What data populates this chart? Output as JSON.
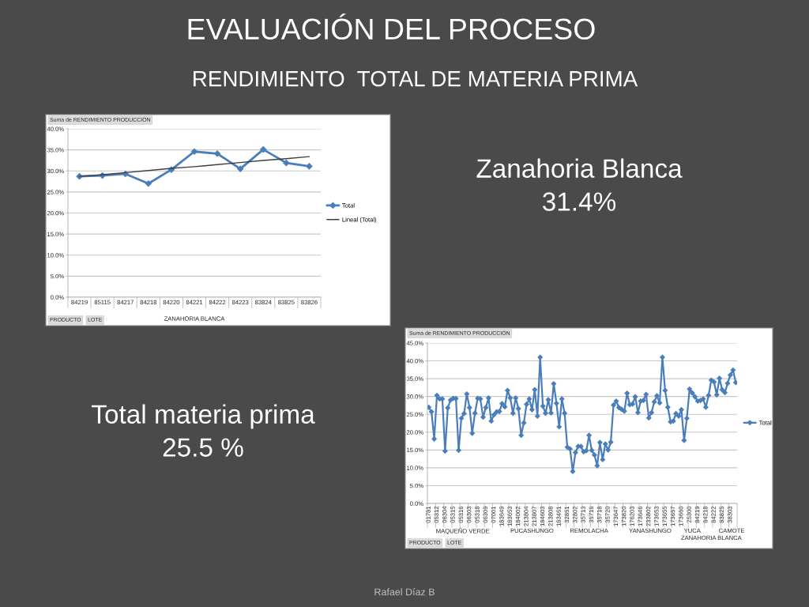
{
  "chart_data": [
    {
      "type": "other",
      "title": "EVALUACIÓN DEL PROCESO",
      "subtitle": "RENDIMIENTO  TOTAL DE MATERIA PRIMA",
      "annotations": [
        "Zanahoria Blanca\n31.4%",
        "Total materia prima\n25.5 %",
        "Rafael Díaz B"
      ]
    },
    {
      "type": "line",
      "categories": [
        "84219",
        "85115",
        "84217",
        "84218",
        "84220",
        "84221",
        "84222",
        "84223",
        "83824",
        "83825",
        "83826"
      ],
      "series": [
        {
          "name": "Total",
          "color": "#4a7ebb",
          "values": [
            28.7,
            28.9,
            29.3,
            27.0,
            30.3,
            34.6,
            34.1,
            30.5,
            35.1,
            31.9,
            31.1
          ]
        },
        {
          "name": "Lineal (Total)",
          "color": "#3f3f3f",
          "marker": "none",
          "values": [
            28.7,
            29.1,
            29.6,
            30.1,
            30.6,
            31.0,
            31.5,
            32.0,
            32.5,
            32.9,
            33.4
          ]
        }
      ],
      "marker": "diamond",
      "xlabel": "ZANAHORIA BLANCA",
      "ylim": [
        0,
        40
      ],
      "yticks": [
        {
          "value": 0,
          "label": "0.0%"
        },
        {
          "value": 5,
          "label": "5.0%"
        },
        {
          "value": 10,
          "label": "10.0%"
        },
        {
          "value": 15,
          "label": "15.0%"
        },
        {
          "value": 20,
          "label": "20.0%"
        },
        {
          "value": 25,
          "label": "25.0%"
        },
        {
          "value": 30,
          "label": "30.0%"
        },
        {
          "value": 35,
          "label": "35.0%"
        },
        {
          "value": 40,
          "label": "40.0%"
        }
      ],
      "grid": "y",
      "legend": "right",
      "annotations": [
        "Suma de RENDIMIENTO PRODUCCIÓN",
        "PRODUCTO",
        "LOTE"
      ]
    },
    {
      "type": "line",
      "categories": [
        "01781",
        null,
        null,
        "05312",
        null,
        null,
        "06304",
        null,
        null,
        "05315",
        null,
        null,
        "05316",
        null,
        null,
        "06303",
        null,
        null,
        "05318",
        null,
        null,
        "06309",
        null,
        null,
        "07001",
        null,
        null,
        "183649",
        null,
        null,
        "183653",
        null,
        null,
        "184002",
        null,
        null,
        "213804",
        null,
        null,
        "213807",
        null,
        null,
        "184603",
        null,
        null,
        "213808",
        null,
        null,
        "183461",
        null,
        null,
        "32851",
        null,
        null,
        "32802",
        null,
        null,
        "35713",
        null,
        null,
        "35716",
        null,
        null,
        "35718",
        null,
        null,
        "35720",
        null,
        null,
        "173647",
        null,
        null,
        "173820",
        null,
        null,
        "176203",
        null,
        null,
        "173646",
        null,
        null,
        "233802",
        null,
        null,
        "173653",
        null,
        null,
        "173655",
        null,
        null,
        "173657",
        null,
        null,
        "173660",
        null,
        null,
        "25300",
        null,
        null,
        "84219",
        null,
        null,
        "84218",
        null,
        null,
        "84222",
        null,
        null,
        "83825",
        null,
        null,
        "38303",
        null,
        null
      ],
      "series": [
        {
          "name": "Total",
          "color": "#4a7ebb",
          "values": [
            27.0,
            25.7,
            18.1,
            30.3,
            29.3,
            29.3,
            14.7,
            26.8,
            29.0,
            29.5,
            29.4,
            14.9,
            23.9,
            25.2,
            30.7,
            26.9,
            19.7,
            25.3,
            29.5,
            29.3,
            24.2,
            26.9,
            29.6,
            23.1,
            24.9,
            25.7,
            25.8,
            28.0,
            27.1,
            31.7,
            29.6,
            25.3,
            29.6,
            26.6,
            19.1,
            22.6,
            27.8,
            29.3,
            26.3,
            31.9,
            24.5,
            41.0,
            27.3,
            25.3,
            29.1,
            25.4,
            33.6,
            28.1,
            21.5,
            29.3,
            25.3,
            15.8,
            15.3,
            9.0,
            14.3,
            16.0,
            16.0,
            14.5,
            14.8,
            19.1,
            14.9,
            13.6,
            10.6,
            17.1,
            12.3,
            16.7,
            15.0,
            17.2,
            27.6,
            28.7,
            26.9,
            26.4,
            25.9,
            30.9,
            27.7,
            27.9,
            29.9,
            25.5,
            28.7,
            28.9,
            30.6,
            24.0,
            25.5,
            28.5,
            30.2,
            28.2,
            41.0,
            31.7,
            27.0,
            22.9,
            23.1,
            25.2,
            24.5,
            26.3,
            17.7,
            23.9,
            32.1,
            31.0,
            29.9,
            28.7,
            28.9,
            29.3,
            27.0,
            30.3,
            34.6,
            34.1,
            30.5,
            35.1,
            31.9,
            31.1,
            33.7,
            36.0,
            37.4,
            33.9
          ]
        }
      ],
      "marker": "diamond",
      "ylim": [
        0,
        45
      ],
      "yticks": [
        {
          "value": 0,
          "label": "0.0%"
        },
        {
          "value": 5,
          "label": "5.0%"
        },
        {
          "value": 10,
          "label": "10.0%"
        },
        {
          "value": 15,
          "label": "15.0%"
        },
        {
          "value": 20,
          "label": "20.0%"
        },
        {
          "value": 25,
          "label": "25.0%"
        },
        {
          "value": 30,
          "label": "30.0%"
        },
        {
          "value": 35,
          "label": "35.0%"
        },
        {
          "value": 40,
          "label": "40.0%"
        },
        {
          "value": 45,
          "label": "45.0%"
        }
      ],
      "grid": "y",
      "legend": "right",
      "annotations": [
        "MAQUEÑO VERDE",
        "PUCASHUNGO",
        "REMOLACHA",
        "YANASHUNGO",
        "YUCA",
        "ZANAHORIA BLANCA",
        "CAMOTE",
        "Suma de RENDIMIENTO PRODUCCIÓN",
        "PRODUCTO",
        "LOTE"
      ]
    }
  ]
}
